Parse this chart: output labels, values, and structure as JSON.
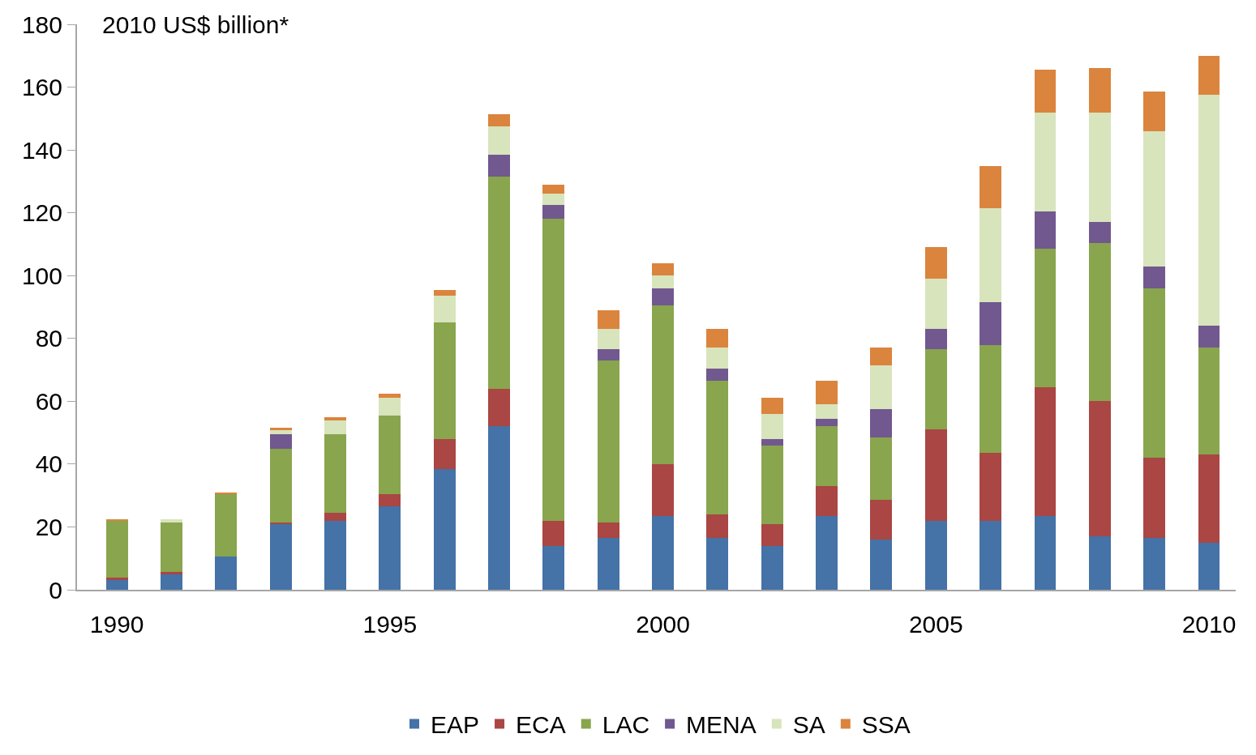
{
  "chart_data": {
    "type": "bar",
    "stacked": true,
    "ylabel": "2010 US$ billion*",
    "x": [
      1990,
      1991,
      1992,
      1993,
      1994,
      1995,
      1996,
      1997,
      1998,
      1999,
      2000,
      2001,
      2002,
      2003,
      2004,
      2005,
      2006,
      2007,
      2008,
      2009,
      2010
    ],
    "series": [
      {
        "name": "EAP",
        "color": "#4572a7",
        "values": [
          3.2,
          5,
          10.5,
          21,
          22,
          26.5,
          38.5,
          52,
          14,
          16.5,
          23.5,
          16.5,
          14,
          23.5,
          16,
          22,
          22,
          23.5,
          17,
          16.5,
          15
        ]
      },
      {
        "name": "ECA",
        "color": "#aa4643",
        "values": [
          0.6,
          0.8,
          0,
          0.5,
          2.5,
          4,
          9.5,
          12,
          8,
          5,
          16.5,
          7.5,
          7,
          9.5,
          12.5,
          29,
          21.5,
          41,
          43,
          25.5,
          28
        ]
      },
      {
        "name": "LAC",
        "color": "#89a54e",
        "values": [
          18.2,
          15.5,
          20,
          23.5,
          25,
          25,
          37,
          67.5,
          96,
          51.5,
          50.5,
          42.5,
          25,
          19,
          20,
          25.5,
          34.5,
          44,
          50.5,
          54,
          34
        ]
      },
      {
        "name": "MENA",
        "color": "#71588f",
        "values": [
          0,
          0,
          0,
          4.5,
          0,
          0,
          0,
          7,
          4.5,
          3.5,
          5.5,
          4,
          2,
          2.5,
          9,
          6.5,
          13.5,
          12,
          6.5,
          7,
          7
        ]
      },
      {
        "name": "SA",
        "color": "#d8e4bc",
        "values": [
          0,
          1.2,
          0,
          1.5,
          4.5,
          5.5,
          8.5,
          9,
          3.5,
          6.5,
          4,
          6.5,
          8,
          4.5,
          14,
          16,
          30,
          31.5,
          35,
          43,
          73.5
        ]
      },
      {
        "name": "SSA",
        "color": "#db843d",
        "values": [
          0.3,
          0,
          0.5,
          0.5,
          1,
          1.5,
          2,
          4,
          3,
          6,
          4,
          6,
          5,
          7.5,
          5.5,
          10,
          13.5,
          13.5,
          14,
          12.5,
          12.5
        ]
      }
    ],
    "xlim": [
      1989.27,
      2010.49
    ],
    "xticks": [
      1990,
      1995,
      2000,
      2005,
      2010
    ],
    "ylim": [
      0,
      180
    ],
    "yticks": [
      0,
      20,
      40,
      60,
      80,
      100,
      120,
      140,
      160,
      180
    ],
    "legend": "bottom"
  }
}
